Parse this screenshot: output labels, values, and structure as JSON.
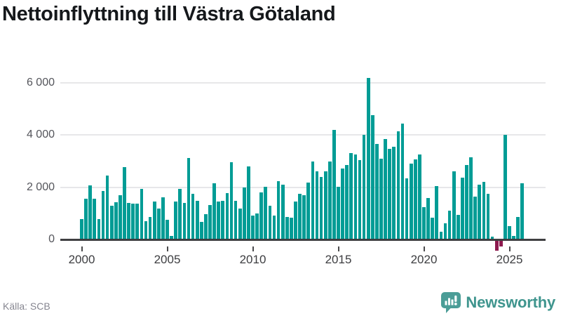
{
  "header": {
    "title": "Nettoinflyttning till Västra Götaland"
  },
  "footer": {
    "source": "Källa: SCB",
    "brand_name": "Newsworthy"
  },
  "colors": {
    "bar_positive": "#009c95",
    "bar_negative": "#8e1a4f",
    "axis": "#3f3f41",
    "gridline": "#e7e7e9",
    "title_text": "#15181b",
    "tick_text": "#3c3d40",
    "source_text": "#868690",
    "brand_teal": "#3f958e",
    "background": "#ffffff"
  },
  "chart_data": {
    "type": "bar",
    "title": "Nettoinflyttning till Västra Götaland",
    "xlabel": "",
    "ylabel": "",
    "frequency": "quarterly",
    "start_period": "2000-Q1",
    "end_period": "2025-Q4",
    "x_tick_labels": [
      "2000",
      "2005",
      "2010",
      "2015",
      "2020",
      "2025"
    ],
    "y_tick_labels": [
      "0",
      "2 000",
      "4 000",
      "6 000"
    ],
    "y_tick_values": [
      0,
      2000,
      4000,
      6000
    ],
    "ylim": [
      -600,
      6500
    ],
    "grid": "horizontal",
    "legend": "none",
    "source": "Källa: SCB",
    "series_by_year": {
      "2000": [
        790,
        1560,
        2070,
        1560
      ],
      "2001": [
        780,
        1850,
        2460,
        1300
      ],
      "2002": [
        1430,
        1690,
        2780,
        1400
      ],
      "2003": [
        1360,
        1380,
        1950,
        690
      ],
      "2004": [
        870,
        1450,
        1190,
        1610
      ],
      "2005": [
        760,
        140,
        1460,
        1940
      ],
      "2006": [
        1390,
        3110,
        1740,
        1490
      ],
      "2007": [
        680,
        960,
        1320,
        2160
      ],
      "2008": [
        1460,
        1480,
        1770,
        2970
      ],
      "2009": [
        1480,
        1190,
        2000,
        2790
      ],
      "2010": [
        920,
        990,
        1810,
        2010
      ],
      "2011": [
        1300,
        920,
        2230,
        2100
      ],
      "2012": [
        850,
        840,
        1450,
        1760
      ],
      "2013": [
        1700,
        2170,
        3000,
        2600
      ],
      "2014": [
        2390,
        2610,
        2990,
        4200
      ],
      "2015": [
        2010,
        2720,
        2850,
        3320
      ],
      "2016": [
        3250,
        3050,
        4000,
        6200
      ],
      "2017": [
        4760,
        3650,
        3100,
        3850
      ],
      "2018": [
        3480,
        3560,
        4140,
        4430
      ],
      "2019": [
        2340,
        2920,
        3080,
        3250
      ],
      "2020": [
        1230,
        1600,
        840,
        2040
      ],
      "2021": [
        290,
        620,
        1100,
        2600
      ],
      "2022": [
        940,
        2360,
        2840,
        3160
      ],
      "2023": [
        1650,
        2100,
        2210,
        1750
      ],
      "2024": [
        110,
        -390,
        -210,
        4000
      ],
      "2025": [
        500,
        140,
        870,
        2160
      ]
    }
  }
}
